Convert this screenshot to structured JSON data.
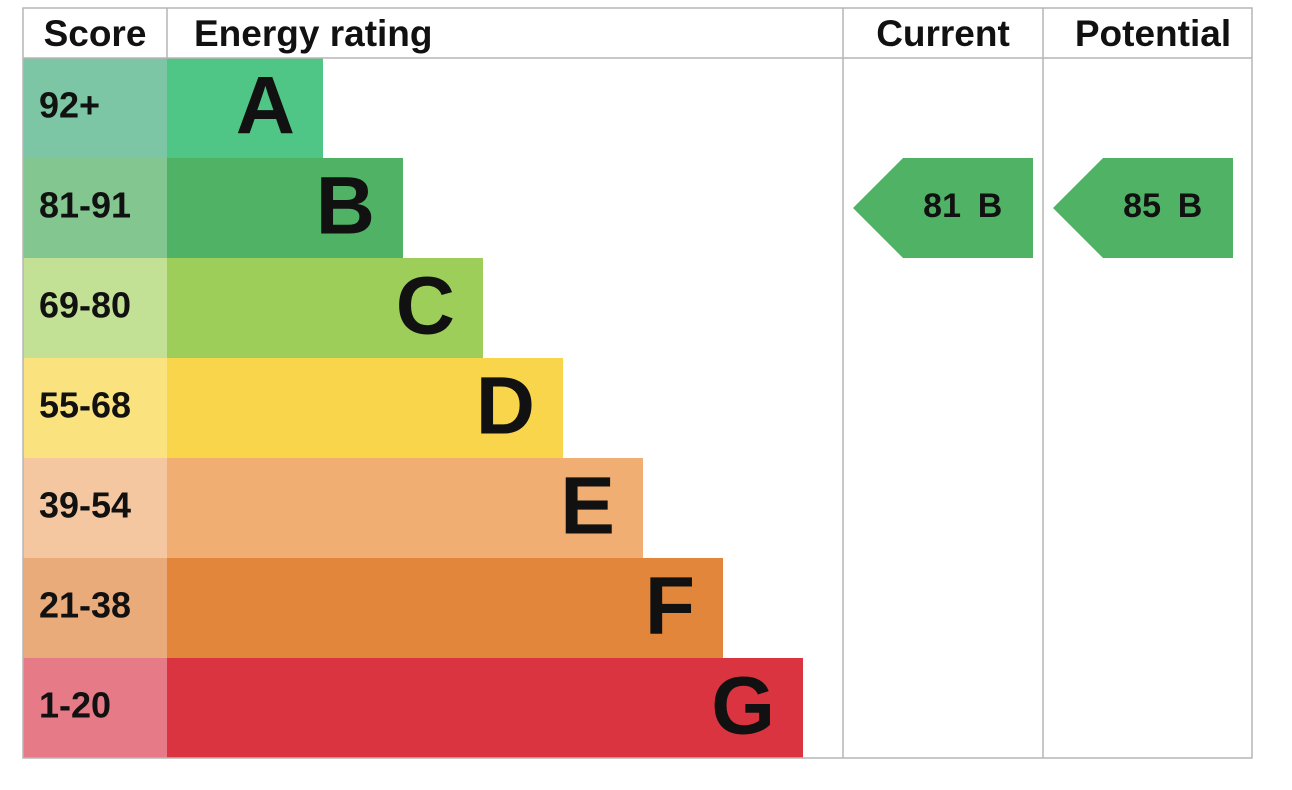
{
  "header": {
    "score": "Score",
    "energy_rating": "Energy rating",
    "current": "Current",
    "potential": "Potential"
  },
  "bands": [
    {
      "score": "92+",
      "rating": "A"
    },
    {
      "score": "81-91",
      "rating": "B"
    },
    {
      "score": "69-80",
      "rating": "C"
    },
    {
      "score": "55-68",
      "rating": "D"
    },
    {
      "score": "39-54",
      "rating": "E"
    },
    {
      "score": "21-38",
      "rating": "F"
    },
    {
      "score": "1-20",
      "rating": "G"
    }
  ],
  "current": {
    "score": 81,
    "rating": "B"
  },
  "potential": {
    "score": 85,
    "rating": "B"
  }
}
